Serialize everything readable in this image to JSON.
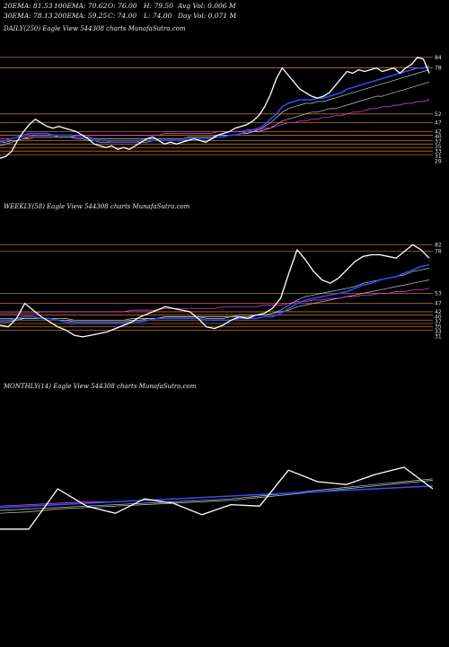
{
  "header": {
    "ema20": "20EMA: 81.53",
    "ema100": "100EMA: 70.62",
    "open": "O: 76.00",
    "high": "H: 79.50",
    "avg_vol": "Avg Vol: 0.006  M",
    "ema30": "30EMA: 78.13",
    "ema200": "200EMA: 59.25",
    "close": "C: 74.00",
    "low": "L: 74.00",
    "day_vol": "Day Vol: 0.071 M"
  },
  "colors": {
    "background": "#000000",
    "price": "#ffffff",
    "ema_blue": "#2f4fff",
    "ema_pink": "#ff40ff",
    "ema_grey": "#c8c8c8",
    "level_line": "#b8722c"
  },
  "chart_data": [
    {
      "type": "line",
      "title": "DAILY(250) Eagle  View  544308  charts MunafaSutra.com",
      "y_range": [
        25,
        92
      ],
      "tick_labels": [
        "84",
        "78",
        "52",
        "47",
        "42",
        "40",
        "37",
        "35",
        "33",
        "31",
        "29"
      ],
      "level_lines": [
        84,
        78,
        52,
        47,
        42,
        40,
        37,
        35,
        33,
        31,
        29
      ],
      "series": [
        {
          "role": "price",
          "color": "#ffffff",
          "values": [
            27,
            28,
            31,
            37,
            42,
            46,
            49,
            47,
            45,
            44,
            45,
            44,
            43,
            42,
            40,
            38,
            35,
            34,
            33,
            34,
            32,
            33,
            32,
            34,
            36,
            38,
            39,
            37,
            35,
            36,
            35,
            36,
            37,
            38,
            37,
            36,
            38,
            40,
            41,
            42,
            44,
            45,
            46,
            48,
            51,
            56,
            63,
            72,
            78,
            74,
            70,
            66,
            64,
            62,
            61,
            62,
            64,
            68,
            72,
            76,
            75,
            77,
            76,
            77,
            78,
            76,
            77,
            78,
            75,
            78,
            80,
            84,
            83,
            75
          ]
        },
        {
          "role": "ema-blue",
          "color": "#2f4fff",
          "values": [
            36,
            37,
            38,
            39,
            40,
            41,
            41,
            41,
            41,
            40,
            40,
            40,
            40,
            39,
            39,
            38,
            37,
            37,
            37,
            36,
            36,
            36,
            36,
            36,
            37,
            37,
            37,
            37,
            37,
            37,
            37,
            37,
            38,
            38,
            38,
            38,
            38,
            39,
            39,
            40,
            40,
            41,
            42,
            43,
            44,
            46,
            49,
            52,
            56,
            58,
            59,
            60,
            60,
            60,
            61,
            61,
            62,
            63,
            64,
            66,
            67,
            68,
            69,
            70,
            71,
            72,
            73,
            74,
            75,
            76,
            77,
            78,
            78,
            79
          ]
        },
        {
          "role": "ema-pink",
          "color": "#ff40ff",
          "values": [
            38,
            38,
            38,
            39,
            39,
            39,
            40,
            40,
            40,
            40,
            40,
            40,
            40,
            40,
            40,
            40,
            40,
            40,
            40,
            40,
            40,
            40,
            40,
            40,
            40,
            40,
            40,
            40,
            41,
            41,
            41,
            41,
            41,
            41,
            41,
            41,
            41,
            42,
            42,
            42,
            42,
            42,
            43,
            43,
            43,
            44,
            44,
            45,
            46,
            47,
            47,
            48,
            48,
            49,
            49,
            50,
            50,
            51,
            51,
            52,
            53,
            53,
            54,
            55,
            55,
            56,
            56,
            57,
            57,
            58,
            58,
            59,
            59,
            60
          ]
        },
        {
          "role": "ema-grey-1",
          "color": "#c8c8c8",
          "values": [
            34,
            35,
            36,
            37,
            38,
            39,
            40,
            40,
            40,
            40,
            39,
            39,
            39,
            38,
            38,
            37,
            37,
            36,
            36,
            36,
            36,
            36,
            36,
            36,
            36,
            36,
            37,
            37,
            37,
            37,
            37,
            37,
            37,
            38,
            38,
            38,
            38,
            39,
            39,
            40,
            40,
            41,
            41,
            42,
            43,
            45,
            47,
            50,
            53,
            55,
            56,
            57,
            58,
            58,
            59,
            59,
            60,
            61,
            62,
            63,
            64,
            65,
            66,
            67,
            68,
            69,
            70,
            71,
            72,
            73,
            74,
            75,
            76,
            77
          ]
        },
        {
          "role": "ema-grey-2",
          "color": "#c8c8c8",
          "values": [
            36,
            36,
            37,
            37,
            38,
            38,
            39,
            39,
            39,
            39,
            39,
            39,
            39,
            39,
            39,
            39,
            38,
            38,
            38,
            38,
            38,
            38,
            38,
            38,
            38,
            38,
            38,
            38,
            38,
            38,
            38,
            38,
            39,
            39,
            39,
            39,
            39,
            40,
            40,
            40,
            40,
            41,
            41,
            42,
            42,
            43,
            44,
            46,
            48,
            49,
            50,
            51,
            52,
            53,
            53,
            54,
            55,
            55,
            56,
            57,
            58,
            59,
            60,
            61,
            62,
            62,
            63,
            64,
            65,
            66,
            67,
            68,
            69,
            70
          ]
        }
      ]
    },
    {
      "type": "line",
      "title": "WEEKLY(58) Eagle  View  544308  charts MunafaSutra.com",
      "y_range": [
        20,
        95
      ],
      "tick_labels": [
        "82",
        "78",
        "53",
        "47",
        "42",
        "40",
        "37",
        "35",
        "33",
        "31"
      ],
      "level_lines": [
        82,
        78,
        53,
        47,
        42,
        40,
        37,
        35,
        33,
        31
      ],
      "series": [
        {
          "role": "price",
          "color": "#ffffff",
          "values": [
            34,
            33,
            38,
            47,
            43,
            39,
            36,
            33,
            31,
            28,
            27,
            28,
            29,
            30,
            32,
            34,
            36,
            39,
            41,
            43,
            45,
            44,
            43,
            42,
            38,
            33,
            32,
            34,
            37,
            39,
            38,
            40,
            41,
            44,
            50,
            65,
            79,
            73,
            66,
            61,
            59,
            62,
            67,
            72,
            75,
            76,
            76,
            75,
            74,
            78,
            82,
            79,
            74
          ]
        },
        {
          "role": "ema-blue",
          "color": "#2f4fff",
          "values": [
            37,
            37,
            38,
            39,
            39,
            38,
            38,
            37,
            36,
            35,
            35,
            35,
            35,
            35,
            35,
            35,
            36,
            36,
            37,
            38,
            38,
            38,
            38,
            38,
            38,
            37,
            37,
            37,
            37,
            38,
            38,
            38,
            39,
            39,
            41,
            44,
            47,
            49,
            50,
            51,
            52,
            53,
            54,
            56,
            58,
            59,
            61,
            62,
            63,
            65,
            67,
            69,
            70
          ]
        },
        {
          "role": "ema-pink",
          "color": "#ff40ff",
          "values": [
            41,
            41,
            41,
            41,
            41,
            42,
            42,
            42,
            42,
            42,
            42,
            42,
            42,
            42,
            42,
            42,
            43,
            43,
            43,
            43,
            44,
            44,
            44,
            44,
            44,
            44,
            44,
            45,
            45,
            45,
            45,
            45,
            46,
            46,
            46,
            47,
            48,
            48,
            49,
            49,
            50,
            50,
            51,
            51,
            52,
            52,
            53,
            53,
            54,
            54,
            55,
            55,
            56
          ]
        },
        {
          "role": "ema-grey-1",
          "color": "#c8c8c8",
          "values": [
            36,
            36,
            37,
            38,
            38,
            38,
            38,
            37,
            37,
            36,
            36,
            36,
            36,
            36,
            36,
            36,
            37,
            37,
            38,
            38,
            39,
            39,
            39,
            39,
            39,
            38,
            38,
            38,
            39,
            39,
            39,
            40,
            40,
            41,
            43,
            46,
            49,
            51,
            52,
            53,
            54,
            55,
            56,
            57,
            59,
            60,
            61,
            62,
            63,
            64,
            66,
            67,
            68
          ]
        },
        {
          "role": "ema-grey-2",
          "color": "#c8c8c8",
          "values": [
            38,
            38,
            38,
            38,
            38,
            38,
            38,
            38,
            38,
            37,
            37,
            37,
            37,
            37,
            37,
            37,
            38,
            38,
            38,
            38,
            39,
            39,
            39,
            39,
            39,
            39,
            39,
            39,
            39,
            40,
            40,
            40,
            40,
            41,
            42,
            43,
            45,
            46,
            47,
            48,
            49,
            50,
            51,
            52,
            53,
            54,
            55,
            56,
            57,
            58,
            59,
            60,
            61
          ]
        }
      ]
    },
    {
      "type": "line",
      "title": "MONTHLY(14) Eagle  View  544308  charts MunafaSutra.com",
      "y_range": [
        15,
        115
      ],
      "tick_labels": [],
      "level_lines": [],
      "series": [
        {
          "role": "price",
          "color": "#ffffff",
          "values": [
            27,
            27,
            55,
            43,
            38,
            48,
            45,
            37,
            44,
            43,
            68,
            60,
            58,
            65,
            70,
            55
          ]
        },
        {
          "role": "ema-blue",
          "color": "#2f4fff",
          "values": [
            42,
            43,
            44,
            45,
            46,
            47,
            48,
            49,
            50,
            51,
            52,
            53,
            54,
            55,
            56,
            57
          ]
        },
        {
          "role": "ema-pink",
          "color": "#ff40ff",
          "values": [
            43,
            44,
            45,
            46,
            46,
            47,
            48,
            49,
            50,
            51,
            52,
            53,
            54,
            55,
            56,
            57
          ]
        },
        {
          "role": "ema-grey-1",
          "color": "#c8c8c8",
          "values": [
            38,
            39,
            41,
            42,
            43,
            44,
            45,
            46,
            47,
            49,
            51,
            53,
            55,
            57,
            59,
            61
          ]
        },
        {
          "role": "ema-grey-2",
          "color": "#c8c8c8",
          "values": [
            40,
            41,
            42,
            43,
            44,
            45,
            46,
            47,
            48,
            50,
            52,
            54,
            56,
            58,
            60,
            62
          ]
        }
      ]
    }
  ]
}
